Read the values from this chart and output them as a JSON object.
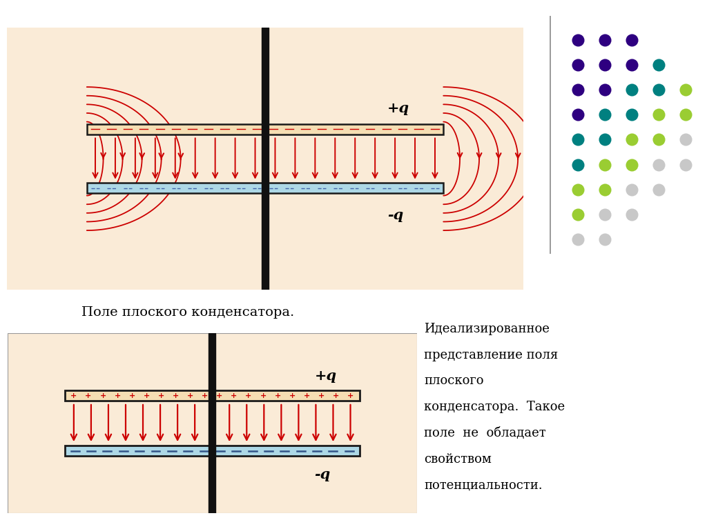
{
  "bg_color": "#faebd7",
  "plate_color_top": "#f5deb3",
  "plate_color_bottom": "#add8e6",
  "plate_border_color": "#1a1a1a",
  "arrow_color": "#cc0000",
  "text_color": "#000000",
  "label_plus_q": "+q",
  "label_minus_q": "-q",
  "caption1": "Поле плоского конденсатора.",
  "caption2_line1": "Идеализированное",
  "caption2_line2": "представление поля",
  "caption2_line3": "плоского",
  "caption2_line4": "конденсатора.  Такое",
  "caption2_line5": "поле  не  обладает",
  "caption2_line6": "свойством",
  "caption2_line7": "потенциальности.",
  "dot_colors_grid": [
    [
      "#2e0080",
      "#2e0080",
      "#2e0080"
    ],
    [
      "#2e0080",
      "#2e0080",
      "#2e0080",
      "#008080"
    ],
    [
      "#2e0080",
      "#2e0080",
      "#008080",
      "#008080",
      "#9acd32"
    ],
    [
      "#2e0080",
      "#008080",
      "#008080",
      "#9acd32",
      "#9acd32"
    ],
    [
      "#008080",
      "#008080",
      "#9acd32",
      "#9acd32",
      "#c8c8c8"
    ],
    [
      "#008080",
      "#9acd32",
      "#9acd32",
      "#c8c8c8",
      "#c8c8c8"
    ],
    [
      "#9acd32",
      "#9acd32",
      "#c8c8c8",
      "#c8c8c8"
    ],
    [
      "#9acd32",
      "#c8c8c8",
      "#c8c8c8"
    ],
    [
      "#c8c8c8",
      "#c8c8c8"
    ]
  ]
}
